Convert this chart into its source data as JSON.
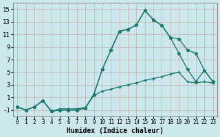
{
  "xlabel": "Humidex (Indice chaleur)",
  "bg_color": "#cce8ec",
  "grid_color": "#c8b8b8",
  "line_color": "#1a7a6e",
  "xlim": [
    -0.5,
    23.5
  ],
  "ylim": [
    -2,
    16
  ],
  "xticks": [
    0,
    1,
    2,
    3,
    4,
    5,
    6,
    7,
    8,
    9,
    10,
    11,
    12,
    13,
    14,
    15,
    16,
    17,
    18,
    19,
    20,
    21,
    22,
    23
  ],
  "yticks": [
    -1,
    1,
    3,
    5,
    7,
    9,
    11,
    13,
    15
  ],
  "line1_x": [
    0,
    1,
    2,
    3,
    4,
    5,
    6,
    7,
    8,
    9,
    10,
    11,
    12,
    13,
    14,
    15,
    16,
    17,
    18,
    19,
    20,
    21,
    22,
    23
  ],
  "line1_y": [
    -0.5,
    -1.0,
    -0.5,
    0.5,
    -1.2,
    -1.0,
    -1.0,
    -1.0,
    -0.7,
    1.5,
    5.5,
    8.5,
    11.5,
    11.8,
    12.5,
    14.8,
    13.3,
    12.4,
    10.5,
    10.3,
    8.5,
    8.0,
    5.3,
    3.5
  ],
  "line2_x": [
    0,
    1,
    2,
    3,
    4,
    5,
    6,
    7,
    8,
    9,
    10,
    11,
    12,
    13,
    14,
    15,
    16,
    17,
    18,
    19,
    20,
    21,
    22,
    23
  ],
  "line2_y": [
    -0.5,
    -1.0,
    -0.5,
    0.5,
    -1.2,
    -1.0,
    -1.0,
    -1.0,
    -0.7,
    1.5,
    5.5,
    8.5,
    11.5,
    11.8,
    12.5,
    14.8,
    13.3,
    12.4,
    10.5,
    8.0,
    5.5,
    3.5,
    5.3,
    3.5
  ],
  "line3_x": [
    0,
    1,
    2,
    3,
    4,
    5,
    6,
    7,
    8,
    9,
    10,
    11,
    12,
    13,
    14,
    15,
    16,
    17,
    18,
    19,
    20,
    21,
    22,
    23
  ],
  "line3_y": [
    -0.5,
    -1.0,
    -0.5,
    0.5,
    -1.2,
    -0.8,
    -0.8,
    -0.8,
    -0.6,
    1.3,
    2.0,
    2.3,
    2.7,
    3.0,
    3.3,
    3.7,
    4.0,
    4.3,
    4.7,
    5.0,
    3.5,
    3.3,
    3.5,
    3.3
  ]
}
